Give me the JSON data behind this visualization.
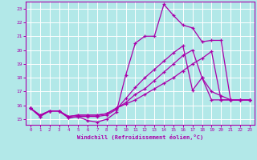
{
  "xlabel": "Windchill (Refroidissement éolien,°C)",
  "bg_color": "#b2e8e8",
  "line_color": "#aa00aa",
  "grid_color": "#cceeee",
  "xlim": [
    -0.5,
    23.5
  ],
  "ylim": [
    14.6,
    23.5
  ],
  "xticks": [
    0,
    1,
    2,
    3,
    4,
    5,
    6,
    7,
    8,
    9,
    10,
    11,
    12,
    13,
    14,
    15,
    16,
    17,
    18,
    19,
    20,
    21,
    22,
    23
  ],
  "yticks": [
    15,
    16,
    17,
    18,
    19,
    20,
    21,
    22,
    23
  ],
  "series": [
    [
      15.8,
      15.2,
      15.6,
      15.6,
      15.1,
      15.2,
      14.9,
      14.8,
      15.0,
      15.5,
      18.2,
      20.5,
      21.0,
      21.0,
      23.3,
      22.5,
      21.8,
      21.6,
      20.6,
      20.7,
      20.7,
      16.4,
      16.4,
      16.4
    ],
    [
      15.8,
      15.2,
      15.6,
      15.6,
      15.1,
      15.2,
      15.2,
      15.2,
      15.3,
      15.7,
      16.5,
      17.3,
      18.0,
      18.6,
      19.2,
      19.8,
      20.3,
      17.1,
      18.0,
      17.0,
      16.7,
      16.4,
      16.4,
      16.4
    ],
    [
      15.8,
      15.3,
      15.6,
      15.6,
      15.2,
      15.3,
      15.3,
      15.3,
      15.4,
      15.8,
      16.2,
      16.8,
      17.2,
      17.8,
      18.4,
      19.0,
      19.6,
      20.0,
      18.0,
      16.4,
      16.4,
      16.4,
      16.4,
      16.4
    ],
    [
      15.8,
      15.3,
      15.6,
      15.6,
      15.2,
      15.3,
      15.3,
      15.3,
      15.4,
      15.8,
      16.1,
      16.4,
      16.8,
      17.2,
      17.6,
      18.0,
      18.5,
      19.0,
      19.4,
      19.9,
      16.4,
      16.4,
      16.4,
      16.4
    ]
  ]
}
